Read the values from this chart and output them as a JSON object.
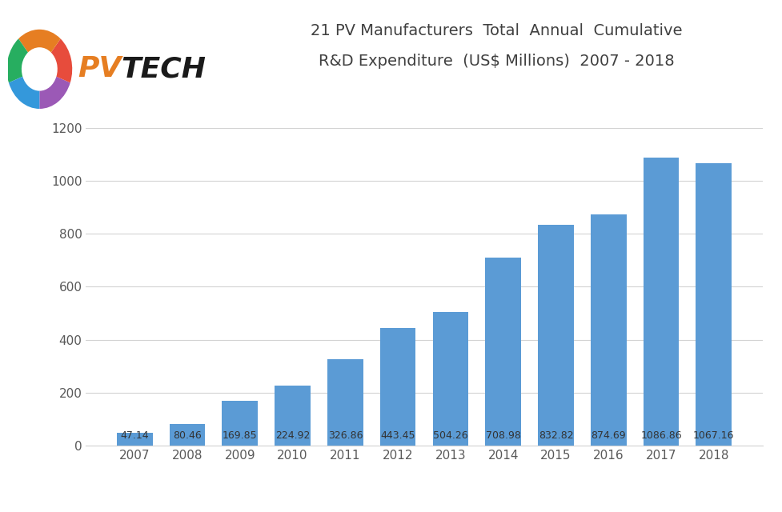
{
  "years": [
    "2007",
    "2008",
    "2009",
    "2010",
    "2011",
    "2012",
    "2013",
    "2014",
    "2015",
    "2016",
    "2017",
    "2018"
  ],
  "values": [
    47.14,
    80.46,
    169.85,
    224.92,
    326.86,
    443.45,
    504.26,
    708.98,
    832.82,
    874.69,
    1086.86,
    1067.16
  ],
  "bar_color": "#5B9BD5",
  "title_line1": "21 PV Manufacturers  Total  Annual  Cumulative",
  "title_line2": "R&D Expenditure  (US$ Millions)  2007 - 2018",
  "ylim": [
    0,
    1200
  ],
  "yticks": [
    0,
    200,
    400,
    600,
    800,
    1000,
    1200
  ],
  "background_color": "#FFFFFF",
  "grid_color": "#D3D3D3",
  "label_color": "#595959",
  "title_color": "#404040",
  "title_fontsize": 14,
  "tick_fontsize": 11,
  "value_fontsize": 9.0,
  "logo_ring_segments": [
    {
      "color": "#9B59B6",
      "theta1": 270,
      "theta2": 340
    },
    {
      "color": "#E74C3C",
      "theta1": 340,
      "theta2": 50
    },
    {
      "color": "#E67E22",
      "theta1": 50,
      "theta2": 130
    },
    {
      "color": "#27AE60",
      "theta1": 130,
      "theta2": 200
    },
    {
      "color": "#3498DB",
      "theta1": 200,
      "theta2": 270
    }
  ],
  "logo_pv_color": "#E67E22",
  "logo_tech_color": "#1A1A1A"
}
